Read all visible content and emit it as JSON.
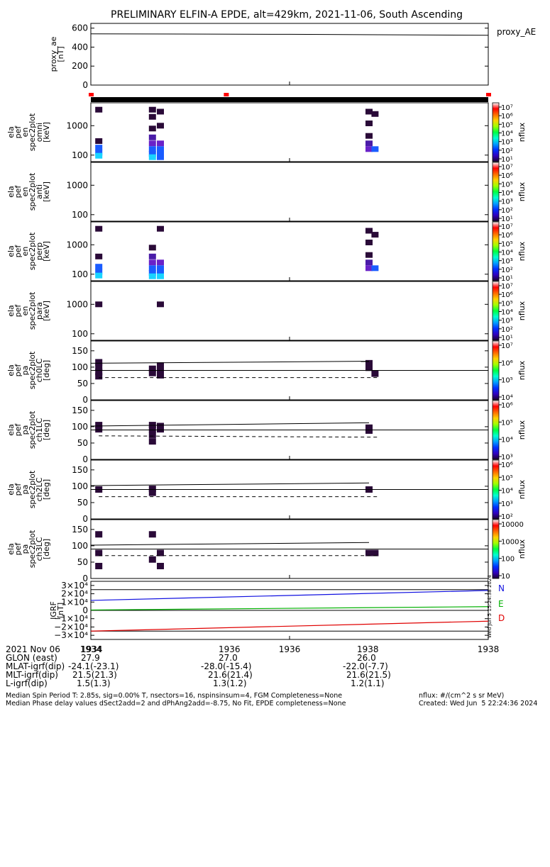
{
  "title": "PRELIMINARY ELFIN-A EPDE, alt=429km, 2021-11-06, South Ascending",
  "colors": {
    "axis": "#000000",
    "north": "#1010e0",
    "east": "#00b000",
    "down": "#e00000",
    "sector": "#ff0000",
    "cell_dark": "#2a0a38",
    "cell_purple": "#4a1ca8",
    "cell_violet": "#6a22c8",
    "cell_blue": "#1a5cff",
    "cell_cyan": "#19d4ff"
  },
  "colorbar_stops": [
    "#ffffff",
    "#ff0000",
    "#ff6a00",
    "#ffd000",
    "#a0ff00",
    "#00ff40",
    "#00ffd0",
    "#00a0ff",
    "#0030ff",
    "#3000c0",
    "#1c0030"
  ],
  "sector_markers": [
    0.0,
    0.34,
    1.0
  ],
  "panels": [
    {
      "key": "ae",
      "ylabel": [
        "proxy_ae",
        "[nT]"
      ],
      "ticks": [
        "600",
        "400",
        "200",
        "0"
      ],
      "right_label": "proxy_AE",
      "cb": []
    },
    {
      "key": "omni",
      "ylabel": [
        "ela",
        "pef",
        "en",
        "spec2plot",
        "omni",
        "[keV]"
      ],
      "ticks": [
        "1000",
        "100"
      ],
      "cb": [
        "10⁷",
        "10⁶",
        "10⁵",
        "10⁴",
        "10³",
        "10²",
        "10¹"
      ],
      "cb_label": "nflux"
    },
    {
      "key": "anti",
      "ylabel": [
        "ela",
        "pef",
        "en",
        "spec2plot",
        "anti",
        "[keV]"
      ],
      "ticks": [
        "1000",
        "100"
      ],
      "cb": [
        "10⁷",
        "10⁶",
        "10⁵",
        "10⁴",
        "10³",
        "10²",
        "10¹"
      ],
      "cb_label": "nflux"
    },
    {
      "key": "perp",
      "ylabel": [
        "ela",
        "pef",
        "en",
        "spec2plot",
        "perp",
        "[keV]"
      ],
      "ticks": [
        "1000",
        "100"
      ],
      "cb": [
        "10⁷",
        "10⁶",
        "10⁵",
        "10⁴",
        "10³",
        "10²",
        "10¹"
      ],
      "cb_label": "nflux"
    },
    {
      "key": "para",
      "ylabel": [
        "ela",
        "pef",
        "en",
        "spec2plot",
        "para",
        "[keV]"
      ],
      "ticks": [
        "1000",
        "100"
      ],
      "cb": [
        "10⁷",
        "10⁶",
        "10⁵",
        "10⁴",
        "10³",
        "10²",
        "10¹"
      ],
      "cb_label": "nflux"
    },
    {
      "key": "ch0",
      "ylabel": [
        "ela",
        "pef",
        "pa",
        "spec2plot",
        "ch0LC",
        "[deg]"
      ],
      "ticks": [
        "150",
        "100",
        "50",
        "0"
      ],
      "cb": [
        "10⁷",
        "10⁶",
        "10⁵",
        "10⁴"
      ],
      "cb_label": "nflux"
    },
    {
      "key": "ch1",
      "ylabel": [
        "ela",
        "pef",
        "pa",
        "spec2plot",
        "ch1LC",
        "[deg]"
      ],
      "ticks": [
        "150",
        "100",
        "50",
        "0"
      ],
      "cb": [
        "10⁶",
        "10⁵",
        "10⁴",
        "10³"
      ],
      "cb_label": "nflux"
    },
    {
      "key": "ch2",
      "ylabel": [
        "ela",
        "pef",
        "pa",
        "spec2plot",
        "ch2LC",
        "[deg]"
      ],
      "ticks": [
        "150",
        "100",
        "50",
        "0"
      ],
      "cb": [
        "10⁶",
        "10⁵",
        "10⁴",
        "10³",
        "10²"
      ],
      "cb_label": "nflux"
    },
    {
      "key": "ch3",
      "ylabel": [
        "ela",
        "pef",
        "pa",
        "spec2plot",
        "ch3LC",
        "[deg]"
      ],
      "ticks": [
        "150",
        "100",
        "50",
        "0"
      ],
      "cb": [
        "10000",
        "1000",
        "100",
        "10"
      ],
      "cb_label": "nflux"
    },
    {
      "key": "igrf",
      "ylabel": [
        "IGRF",
        "[nT]"
      ],
      "ticks": [
        "3×10⁴",
        "2×10⁴",
        "1×10⁴",
        "0",
        "−1×10⁴",
        "−2×10⁴",
        "−3×10⁴"
      ],
      "cb": [],
      "legend": [
        "N",
        "E",
        "D"
      ]
    }
  ],
  "chart_data": [
    {
      "type": "line",
      "title": "proxy_ae",
      "ylabel": "proxy_ae [nT]",
      "ylim": [
        0,
        650
      ],
      "x": [
        0.0,
        0.5,
        1.0
      ],
      "values": [
        540,
        535,
        525
      ]
    },
    {
      "type": "heatmap",
      "title": "ela pef en spec2plot omni",
      "ylabel": "[keV]",
      "scale": "log",
      "cells": [
        {
          "t": 0.02,
          "e": 180,
          "c": "cell_blue"
        },
        {
          "t": 0.02,
          "e": 120,
          "c": "cell_blue"
        },
        {
          "t": 0.02,
          "e": 95,
          "c": "cell_cyan"
        },
        {
          "t": 0.02,
          "e": 300,
          "c": "cell_dark"
        },
        {
          "t": 0.02,
          "e": 3500,
          "c": "cell_dark"
        },
        {
          "t": 0.155,
          "e": 3500,
          "c": "cell_dark"
        },
        {
          "t": 0.155,
          "e": 2000,
          "c": "cell_dark"
        },
        {
          "t": 0.155,
          "e": 800,
          "c": "cell_dark"
        },
        {
          "t": 0.155,
          "e": 400,
          "c": "cell_purple"
        },
        {
          "t": 0.155,
          "e": 250,
          "c": "cell_violet"
        },
        {
          "t": 0.155,
          "e": 160,
          "c": "cell_blue"
        },
        {
          "t": 0.155,
          "e": 110,
          "c": "cell_blue"
        },
        {
          "t": 0.155,
          "e": 85,
          "c": "cell_cyan"
        },
        {
          "t": 0.175,
          "e": 3000,
          "c": "cell_dark"
        },
        {
          "t": 0.175,
          "e": 1000,
          "c": "cell_dark"
        },
        {
          "t": 0.175,
          "e": 250,
          "c": "cell_violet"
        },
        {
          "t": 0.175,
          "e": 160,
          "c": "cell_blue"
        },
        {
          "t": 0.175,
          "e": 110,
          "c": "cell_blue"
        },
        {
          "t": 0.175,
          "e": 85,
          "c": "cell_blue"
        },
        {
          "t": 0.7,
          "e": 3000,
          "c": "cell_dark"
        },
        {
          "t": 0.7,
          "e": 1200,
          "c": "cell_dark"
        },
        {
          "t": 0.7,
          "e": 450,
          "c": "cell_dark"
        },
        {
          "t": 0.7,
          "e": 250,
          "c": "cell_purple"
        },
        {
          "t": 0.7,
          "e": 160,
          "c": "cell_violet"
        },
        {
          "t": 0.715,
          "e": 160,
          "c": "cell_blue"
        },
        {
          "t": 0.715,
          "e": 2500,
          "c": "cell_dark"
        }
      ]
    },
    {
      "type": "heatmap",
      "title": "ela pef en spec2plot anti",
      "ylabel": "[keV]",
      "scale": "log",
      "cells": []
    },
    {
      "type": "heatmap",
      "title": "ela pef en spec2plot perp",
      "ylabel": "[keV]",
      "scale": "log",
      "cells": [
        {
          "t": 0.02,
          "e": 3500,
          "c": "cell_dark"
        },
        {
          "t": 0.02,
          "e": 400,
          "c": "cell_dark"
        },
        {
          "t": 0.02,
          "e": 180,
          "c": "cell_blue"
        },
        {
          "t": 0.02,
          "e": 120,
          "c": "cell_blue"
        },
        {
          "t": 0.02,
          "e": 90,
          "c": "cell_cyan"
        },
        {
          "t": 0.155,
          "e": 800,
          "c": "cell_dark"
        },
        {
          "t": 0.155,
          "e": 400,
          "c": "cell_purple"
        },
        {
          "t": 0.155,
          "e": 250,
          "c": "cell_violet"
        },
        {
          "t": 0.155,
          "e": 160,
          "c": "cell_blue"
        },
        {
          "t": 0.155,
          "e": 110,
          "c": "cell_blue"
        },
        {
          "t": 0.155,
          "e": 85,
          "c": "cell_cyan"
        },
        {
          "t": 0.175,
          "e": 3500,
          "c": "cell_dark"
        },
        {
          "t": 0.175,
          "e": 250,
          "c": "cell_violet"
        },
        {
          "t": 0.175,
          "e": 160,
          "c": "cell_blue"
        },
        {
          "t": 0.175,
          "e": 110,
          "c": "cell_blue"
        },
        {
          "t": 0.175,
          "e": 85,
          "c": "cell_cyan"
        },
        {
          "t": 0.7,
          "e": 3000,
          "c": "cell_dark"
        },
        {
          "t": 0.7,
          "e": 1200,
          "c": "cell_dark"
        },
        {
          "t": 0.7,
          "e": 450,
          "c": "cell_dark"
        },
        {
          "t": 0.7,
          "e": 250,
          "c": "cell_purple"
        },
        {
          "t": 0.7,
          "e": 160,
          "c": "cell_violet"
        },
        {
          "t": 0.715,
          "e": 160,
          "c": "cell_blue"
        },
        {
          "t": 0.715,
          "e": 2200,
          "c": "cell_dark"
        }
      ]
    },
    {
      "type": "heatmap",
      "title": "ela pef en spec2plot para",
      "ylabel": "[keV]",
      "scale": "log",
      "cells": [
        {
          "t": 0.02,
          "e": 1000,
          "c": "cell_dark"
        },
        {
          "t": 0.175,
          "e": 1000,
          "c": "cell_dark"
        }
      ]
    },
    {
      "type": "heatmap",
      "title": "ela pef pa spec2plot ch0LC",
      "ylabel": "[deg]",
      "ylim": [
        0,
        180
      ],
      "lines": {
        "solid_upper": [
          112,
          118
        ],
        "solid_lower": [
          90,
          90
        ],
        "dashed": [
          68,
          68
        ]
      },
      "cells": [
        {
          "t": 0.02,
          "e": 115,
          "c": "cell_dark"
        },
        {
          "t": 0.02,
          "e": 100,
          "c": "cell_dark"
        },
        {
          "t": 0.02,
          "e": 85,
          "c": "cell_dark"
        },
        {
          "t": 0.02,
          "e": 72,
          "c": "cell_dark"
        },
        {
          "t": 0.155,
          "e": 95,
          "c": "cell_dark"
        },
        {
          "t": 0.155,
          "e": 82,
          "c": "cell_dark"
        },
        {
          "t": 0.175,
          "e": 105,
          "c": "cell_dark"
        },
        {
          "t": 0.175,
          "e": 90,
          "c": "cell_dark"
        },
        {
          "t": 0.175,
          "e": 75,
          "c": "cell_dark"
        },
        {
          "t": 0.7,
          "e": 112,
          "c": "cell_dark"
        },
        {
          "t": 0.7,
          "e": 98,
          "c": "cell_dark"
        },
        {
          "t": 0.715,
          "e": 80,
          "c": "cell_dark"
        }
      ]
    },
    {
      "type": "heatmap",
      "title": "ela pef pa spec2plot ch1LC",
      "ylabel": "[deg]",
      "ylim": [
        0,
        180
      ],
      "lines": {
        "solid_upper": [
          102,
          112
        ],
        "solid_lower": [
          90,
          90
        ],
        "dashed": [
          72,
          68
        ]
      },
      "cells": [
        {
          "t": 0.02,
          "e": 105,
          "c": "cell_dark"
        },
        {
          "t": 0.02,
          "e": 92,
          "c": "cell_dark"
        },
        {
          "t": 0.155,
          "e": 105,
          "c": "cell_dark"
        },
        {
          "t": 0.155,
          "e": 92,
          "c": "cell_dark"
        },
        {
          "t": 0.155,
          "e": 75,
          "c": "cell_dark"
        },
        {
          "t": 0.155,
          "e": 55,
          "c": "cell_dark"
        },
        {
          "t": 0.175,
          "e": 102,
          "c": "cell_dark"
        },
        {
          "t": 0.175,
          "e": 92,
          "c": "cell_dark"
        },
        {
          "t": 0.7,
          "e": 97,
          "c": "cell_dark"
        },
        {
          "t": 0.7,
          "e": 88,
          "c": "cell_dark"
        }
      ]
    },
    {
      "type": "heatmap",
      "title": "ela pef pa spec2plot ch2LC",
      "ylabel": "[deg]",
      "ylim": [
        0,
        180
      ],
      "lines": {
        "solid_upper": [
          102,
          110
        ],
        "solid_lower": [
          90,
          90
        ],
        "dashed": [
          68,
          68
        ]
      },
      "cells": [
        {
          "t": 0.02,
          "e": 90,
          "c": "cell_dark"
        },
        {
          "t": 0.155,
          "e": 92,
          "c": "cell_dark"
        },
        {
          "t": 0.155,
          "e": 80,
          "c": "cell_dark"
        },
        {
          "t": 0.7,
          "e": 90,
          "c": "cell_dark"
        }
      ]
    },
    {
      "type": "heatmap",
      "title": "ela pef pa spec2plot ch3LC",
      "ylabel": "[deg]",
      "ylim": [
        0,
        180
      ],
      "lines": {
        "solid_upper": [
          102,
          110
        ],
        "solid_lower": [
          90,
          90
        ],
        "dashed": [
          70,
          70
        ]
      },
      "cells": [
        {
          "t": 0.02,
          "e": 135,
          "c": "cell_dark"
        },
        {
          "t": 0.02,
          "e": 78,
          "c": "cell_dark"
        },
        {
          "t": 0.02,
          "e": 38,
          "c": "cell_dark"
        },
        {
          "t": 0.155,
          "e": 135,
          "c": "cell_dark"
        },
        {
          "t": 0.155,
          "e": 58,
          "c": "cell_dark"
        },
        {
          "t": 0.175,
          "e": 78,
          "c": "cell_dark"
        },
        {
          "t": 0.175,
          "e": 38,
          "c": "cell_dark"
        },
        {
          "t": 0.7,
          "e": 78,
          "c": "cell_dark"
        },
        {
          "t": 0.715,
          "e": 78,
          "c": "cell_dark"
        }
      ]
    },
    {
      "type": "line",
      "title": "IGRF",
      "ylabel": "IGRF [nT]",
      "ylim": [
        -35000,
        35000
      ],
      "x": [
        0,
        1
      ],
      "series": [
        {
          "name": "N",
          "values": [
            12000,
            24000
          ]
        },
        {
          "name": "E",
          "values": [
            500,
            4500
          ]
        },
        {
          "name": "D",
          "values": [
            -25000,
            -13000
          ]
        }
      ],
      "hlines": [
        25000,
        -25000
      ]
    }
  ],
  "xaxis": {
    "ticks": [
      "1934",
      "1936",
      "1938"
    ],
    "tick_pos": [
      0.0,
      0.5,
      1.0
    ]
  },
  "side_stamp": "Wed Jun  5 15:24:38 2024",
  "footer": {
    "rows": [
      {
        "label": "2021 Nov 06",
        "v1": "1934",
        "v2": "1936",
        "v3": "1938"
      },
      {
        "label": "GLON (east)",
        "v1": "27.9",
        "v2": "27.0",
        "v3": "26.0"
      },
      {
        "label": "MLAT-igrf(dip)",
        "v1": "-24.1(-23.1)",
        "v2": "-28.0(-15.4)",
        "v3": "-22.0(-7.7)"
      },
      {
        "label": "MLT-igrf(dip)",
        "v1": "21.5(21.3)",
        "v2": "21.6(21.4)",
        "v3": "21.6(21.5)"
      },
      {
        "label": "L-igrf(dip)",
        "v1": "1.5(1.3)",
        "v2": "1.3(1.2)",
        "v3": "1.2(1.1)"
      }
    ],
    "line1": "Median Spin Period T: 2.85s, sig=0.00% T, nsectors=16, nspinsinsum=4, FGM Completeness=None",
    "line2": "Median Phase delay values dSect2add=2 and dPhAng2add=-8.75, No Fit, EPDE completeness=None",
    "units": "nflux: #/(cm^2 s sr MeV)",
    "created": "Created: Wed Jun  5 22:24:36 2024"
  }
}
